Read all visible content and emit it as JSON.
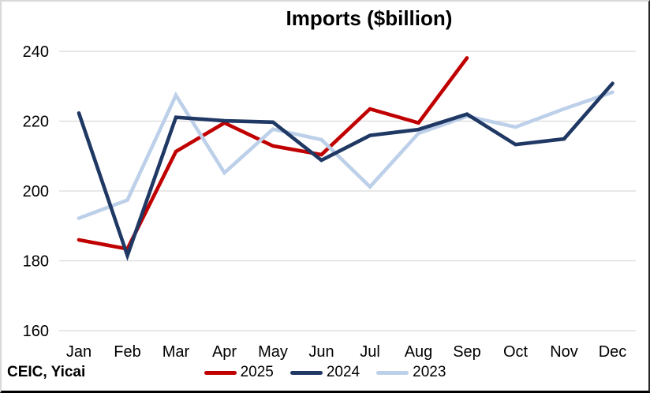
{
  "title": "Imports ($billion)",
  "source": "CEIC, Yicai",
  "chart_data": {
    "type": "line",
    "title": "Imports ($billion)",
    "categories": [
      "Jan",
      "Feb",
      "Mar",
      "Apr",
      "May",
      "Jun",
      "Jul",
      "Aug",
      "Sep",
      "Oct",
      "Nov",
      "Dec"
    ],
    "series": [
      {
        "name": "2025",
        "color": "#C00000",
        "values": [
          186.0,
          183.4,
          211.3,
          219.5,
          212.9,
          210.4,
          223.5,
          219.5,
          238.1
        ]
      },
      {
        "name": "2024",
        "color": "#1F3864",
        "values": [
          222.3,
          181.5,
          221.1,
          220.1,
          219.7,
          208.8,
          215.9,
          217.6,
          222.0,
          213.3,
          214.9,
          230.8
        ]
      },
      {
        "name": "2023",
        "color": "#BDD0E9",
        "values": [
          192.2,
          197.4,
          227.4,
          205.2,
          217.7,
          214.7,
          201.2,
          216.5,
          221.4,
          218.3,
          223.5,
          228.3
        ]
      }
    ],
    "ylim": [
      160,
      240
    ],
    "yticks": [
      160,
      180,
      200,
      220,
      240
    ],
    "grid": true,
    "grid_color": "#D9D9D9",
    "legend_position": "bottom",
    "legend_labels": [
      "2025",
      "2024",
      "2023"
    ]
  }
}
